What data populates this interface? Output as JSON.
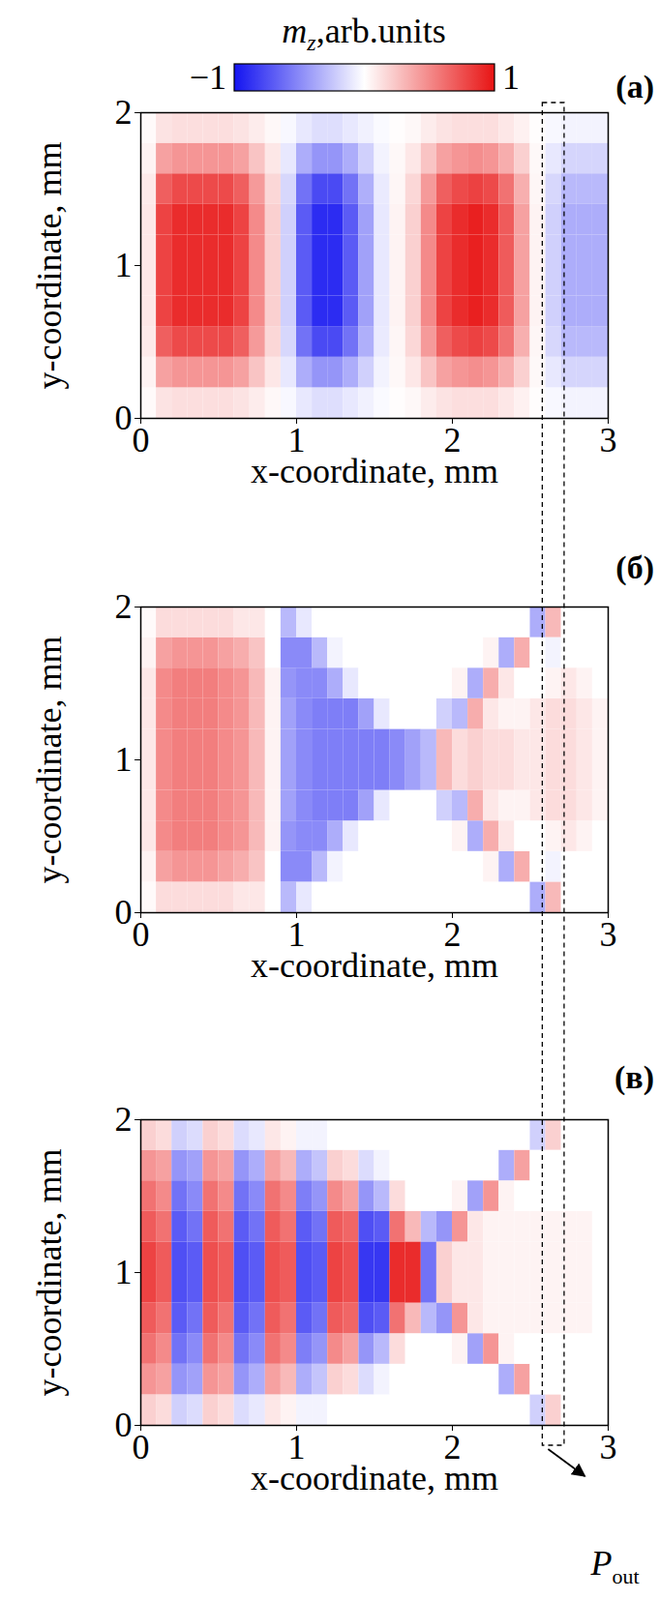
{
  "chart_data": [
    {
      "type": "heatmap",
      "title": "(а)",
      "x_label": "x-coordinate, mm",
      "y_label": "y-coordinate, mm",
      "xlim": [
        0,
        3
      ],
      "ylim": [
        0,
        2
      ],
      "xticks": [
        0,
        1,
        2,
        3
      ],
      "yticks": [
        0,
        1,
        2
      ],
      "x": [
        0.05,
        0.15,
        0.25,
        0.35,
        0.45,
        0.55,
        0.65,
        0.75,
        0.85,
        0.95,
        1.05,
        1.15,
        1.25,
        1.35,
        1.45,
        1.55,
        1.65,
        1.75,
        1.85,
        1.95,
        2.05,
        2.15,
        2.25,
        2.35,
        2.45,
        2.55,
        2.65,
        2.75,
        2.85,
        2.95
      ],
      "y": [
        0.1,
        0.3,
        0.5,
        0.7,
        0.9,
        1.1,
        1.3,
        1.5,
        1.7,
        1.9
      ],
      "z": [
        [
          0.02,
          0.12,
          0.14,
          0.14,
          0.14,
          0.14,
          0.12,
          0.08,
          0.03,
          -0.03,
          -0.1,
          -0.14,
          -0.14,
          -0.1,
          -0.06,
          -0.02,
          0.01,
          0.03,
          0.08,
          0.12,
          0.14,
          0.14,
          0.14,
          0.1,
          0.06,
          0.01,
          -0.03,
          -0.05,
          -0.05,
          -0.05
        ],
        [
          0.05,
          0.4,
          0.45,
          0.45,
          0.45,
          0.45,
          0.4,
          0.25,
          0.1,
          -0.1,
          -0.35,
          -0.45,
          -0.45,
          -0.35,
          -0.2,
          -0.05,
          0.03,
          0.1,
          0.25,
          0.4,
          0.45,
          0.48,
          0.45,
          0.35,
          0.2,
          0.03,
          -0.1,
          -0.18,
          -0.18,
          -0.18
        ],
        [
          0.09,
          0.68,
          0.77,
          0.77,
          0.77,
          0.77,
          0.68,
          0.43,
          0.17,
          -0.17,
          -0.6,
          -0.77,
          -0.77,
          -0.6,
          -0.34,
          -0.09,
          0.04,
          0.17,
          0.43,
          0.68,
          0.77,
          0.81,
          0.77,
          0.6,
          0.34,
          0.04,
          -0.17,
          -0.3,
          -0.3,
          -0.3
        ],
        [
          0.1,
          0.8,
          0.9,
          0.9,
          0.9,
          0.9,
          0.8,
          0.5,
          0.2,
          -0.2,
          -0.7,
          -0.9,
          -0.9,
          -0.7,
          -0.4,
          -0.1,
          0.05,
          0.2,
          0.5,
          0.8,
          0.9,
          0.95,
          0.9,
          0.7,
          0.4,
          0.05,
          -0.2,
          -0.35,
          -0.35,
          -0.35
        ],
        [
          0.1,
          0.8,
          0.9,
          0.9,
          0.9,
          0.9,
          0.8,
          0.5,
          0.2,
          -0.2,
          -0.7,
          -0.9,
          -0.9,
          -0.7,
          -0.4,
          -0.1,
          0.05,
          0.2,
          0.5,
          0.8,
          0.9,
          0.95,
          0.9,
          0.7,
          0.4,
          0.05,
          -0.2,
          -0.35,
          -0.35,
          -0.35
        ],
        [
          0.1,
          0.8,
          0.9,
          0.9,
          0.9,
          0.9,
          0.8,
          0.5,
          0.2,
          -0.2,
          -0.7,
          -0.9,
          -0.9,
          -0.7,
          -0.4,
          -0.1,
          0.05,
          0.2,
          0.5,
          0.8,
          0.9,
          0.95,
          0.9,
          0.7,
          0.4,
          0.05,
          -0.2,
          -0.35,
          -0.35,
          -0.35
        ],
        [
          0.1,
          0.8,
          0.9,
          0.9,
          0.9,
          0.9,
          0.8,
          0.5,
          0.2,
          -0.2,
          -0.7,
          -0.9,
          -0.9,
          -0.7,
          -0.4,
          -0.1,
          0.05,
          0.2,
          0.5,
          0.8,
          0.9,
          0.95,
          0.9,
          0.7,
          0.4,
          0.05,
          -0.2,
          -0.35,
          -0.35,
          -0.35
        ],
        [
          0.09,
          0.68,
          0.77,
          0.77,
          0.77,
          0.77,
          0.68,
          0.43,
          0.17,
          -0.17,
          -0.6,
          -0.77,
          -0.77,
          -0.6,
          -0.34,
          -0.09,
          0.04,
          0.17,
          0.43,
          0.68,
          0.77,
          0.81,
          0.77,
          0.6,
          0.34,
          0.04,
          -0.17,
          -0.3,
          -0.3,
          -0.3
        ],
        [
          0.05,
          0.4,
          0.45,
          0.45,
          0.45,
          0.45,
          0.4,
          0.25,
          0.1,
          -0.1,
          -0.35,
          -0.45,
          -0.45,
          -0.35,
          -0.2,
          -0.05,
          0.03,
          0.1,
          0.25,
          0.4,
          0.45,
          0.48,
          0.45,
          0.35,
          0.2,
          0.03,
          -0.1,
          -0.18,
          -0.18,
          -0.18
        ],
        [
          0.02,
          0.12,
          0.14,
          0.14,
          0.14,
          0.14,
          0.12,
          0.08,
          0.03,
          -0.03,
          -0.1,
          -0.14,
          -0.14,
          -0.1,
          -0.06,
          -0.02,
          0.01,
          0.03,
          0.08,
          0.12,
          0.14,
          0.14,
          0.14,
          0.1,
          0.06,
          0.01,
          -0.03,
          -0.05,
          -0.05,
          -0.05
        ]
      ]
    },
    {
      "type": "heatmap",
      "title": "(б)",
      "x_label": "x-coordinate, mm",
      "y_label": "y-coordinate, mm",
      "xlim": [
        0,
        3
      ],
      "ylim": [
        0,
        2
      ],
      "xticks": [
        0,
        1,
        2,
        3
      ],
      "yticks": [
        0,
        1,
        2
      ],
      "x": [
        0.05,
        0.15,
        0.25,
        0.35,
        0.45,
        0.55,
        0.65,
        0.75,
        0.85,
        0.95,
        1.05,
        1.15,
        1.25,
        1.35,
        1.45,
        1.55,
        1.65,
        1.75,
        1.85,
        1.95,
        2.05,
        2.15,
        2.25,
        2.35,
        2.45,
        2.55,
        2.65,
        2.75,
        2.85,
        2.95
      ],
      "y": [
        0.1,
        0.3,
        0.5,
        0.7,
        0.9,
        1.1,
        1.3,
        1.5,
        1.7,
        1.9
      ],
      "z": [
        [
          0.02,
          0.15,
          0.15,
          0.15,
          0.15,
          0.15,
          0.1,
          0.1,
          0,
          -0.3,
          -0.1,
          0,
          0,
          0,
          0,
          0,
          0,
          0,
          0,
          0,
          0,
          0,
          0,
          0,
          0,
          -0.35,
          0.3,
          0,
          0,
          0
        ],
        [
          0.05,
          0.4,
          0.45,
          0.45,
          0.45,
          0.4,
          0.35,
          0.25,
          0,
          -0.5,
          -0.5,
          -0.3,
          -0.05,
          0,
          0,
          0,
          0,
          0,
          0,
          0,
          0,
          0,
          0.05,
          -0.35,
          0.35,
          0,
          -0.05,
          0,
          0,
          0
        ],
        [
          0.1,
          0.5,
          0.55,
          0.55,
          0.55,
          0.5,
          0.45,
          0.3,
          0.05,
          -0.45,
          -0.5,
          -0.5,
          -0.35,
          -0.1,
          0,
          0,
          0,
          0,
          0,
          0,
          0.05,
          -0.35,
          0.35,
          0.1,
          0,
          0,
          0.05,
          0.1,
          0.05,
          0
        ],
        [
          0.1,
          0.5,
          0.55,
          0.55,
          0.55,
          0.5,
          0.45,
          0.3,
          0.05,
          -0.4,
          -0.5,
          -0.55,
          -0.55,
          -0.55,
          -0.4,
          -0.1,
          0,
          0,
          0,
          -0.2,
          -0.3,
          0.35,
          0.1,
          0.05,
          0.05,
          0.1,
          0.15,
          0.15,
          0.1,
          0.05
        ],
        [
          0.1,
          0.5,
          0.55,
          0.55,
          0.55,
          0.5,
          0.45,
          0.3,
          0.05,
          -0.4,
          -0.5,
          -0.55,
          -0.55,
          -0.55,
          -0.55,
          -0.55,
          -0.5,
          -0.4,
          -0.3,
          0.3,
          0.15,
          0.2,
          0.15,
          0.15,
          0.1,
          0.1,
          0.15,
          0.15,
          0.1,
          0.05
        ],
        [
          0.1,
          0.5,
          0.55,
          0.55,
          0.55,
          0.5,
          0.45,
          0.3,
          0.05,
          -0.4,
          -0.5,
          -0.55,
          -0.55,
          -0.55,
          -0.55,
          -0.55,
          -0.5,
          -0.4,
          -0.3,
          0.3,
          0.15,
          0.2,
          0.15,
          0.15,
          0.1,
          0.1,
          0.15,
          0.15,
          0.1,
          0.05
        ],
        [
          0.1,
          0.5,
          0.55,
          0.55,
          0.55,
          0.5,
          0.45,
          0.3,
          0.05,
          -0.4,
          -0.5,
          -0.55,
          -0.55,
          -0.55,
          -0.4,
          -0.1,
          0,
          0,
          0,
          -0.2,
          -0.3,
          0.35,
          0.1,
          0.05,
          0.05,
          0.1,
          0.15,
          0.15,
          0.1,
          0.05
        ],
        [
          0.1,
          0.5,
          0.55,
          0.55,
          0.55,
          0.5,
          0.45,
          0.3,
          0.05,
          -0.45,
          -0.5,
          -0.5,
          -0.35,
          -0.1,
          0,
          0,
          0,
          0,
          0,
          0,
          0.05,
          -0.35,
          0.35,
          0.1,
          0,
          0,
          0.05,
          0.1,
          0.05,
          0
        ],
        [
          0.05,
          0.4,
          0.45,
          0.45,
          0.45,
          0.4,
          0.35,
          0.25,
          0,
          -0.5,
          -0.5,
          -0.3,
          -0.05,
          0,
          0,
          0,
          0,
          0,
          0,
          0,
          0,
          0,
          0.05,
          -0.35,
          0.35,
          0,
          -0.05,
          0,
          0,
          0
        ],
        [
          0.02,
          0.15,
          0.15,
          0.15,
          0.15,
          0.15,
          0.1,
          0.1,
          0,
          -0.3,
          -0.1,
          0,
          0,
          0,
          0,
          0,
          0,
          0,
          0,
          0,
          0,
          0,
          0,
          0,
          0,
          -0.35,
          0.3,
          0,
          0,
          0
        ]
      ]
    },
    {
      "type": "heatmap",
      "title": "(в)",
      "x_label": "x-coordinate, mm",
      "y_label": "y-coordinate, mm",
      "xlim": [
        0,
        3
      ],
      "ylim": [
        0,
        2
      ],
      "xticks": [
        0,
        1,
        2,
        3
      ],
      "yticks": [
        0,
        1,
        2
      ],
      "x": [
        0.05,
        0.15,
        0.25,
        0.35,
        0.45,
        0.55,
        0.65,
        0.75,
        0.85,
        0.95,
        1.05,
        1.15,
        1.25,
        1.35,
        1.45,
        1.55,
        1.65,
        1.75,
        1.85,
        1.95,
        2.05,
        2.15,
        2.25,
        2.35,
        2.45,
        2.55,
        2.65,
        2.75,
        2.85,
        2.95
      ],
      "y": [
        0.1,
        0.3,
        0.5,
        0.7,
        0.9,
        1.1,
        1.3,
        1.5,
        1.7,
        1.9
      ],
      "z": [
        [
          0.2,
          0.15,
          -0.2,
          -0.15,
          0.2,
          0.15,
          -0.15,
          -0.1,
          0.1,
          0.05,
          -0.05,
          -0.05,
          0,
          0,
          0,
          0,
          0,
          0,
          0,
          0,
          0,
          0,
          0,
          0,
          0,
          -0.2,
          0.2,
          0,
          0,
          0
        ],
        [
          0.45,
          0.4,
          -0.45,
          -0.4,
          0.45,
          0.4,
          -0.45,
          -0.35,
          0.4,
          0.3,
          -0.35,
          -0.25,
          0.2,
          0.15,
          -0.15,
          -0.05,
          0,
          0,
          0,
          0,
          0,
          0,
          0,
          -0.35,
          0.4,
          0,
          0,
          0,
          0,
          0
        ],
        [
          0.6,
          0.5,
          -0.6,
          -0.5,
          0.6,
          0.5,
          -0.6,
          -0.5,
          0.6,
          0.5,
          -0.55,
          -0.45,
          0.5,
          0.4,
          -0.45,
          -0.3,
          0.15,
          0,
          0,
          0,
          0.05,
          -0.4,
          0.45,
          0.05,
          0,
          0,
          0,
          0,
          0,
          0
        ],
        [
          0.7,
          0.6,
          -0.7,
          -0.6,
          0.7,
          0.6,
          -0.7,
          -0.6,
          0.7,
          0.6,
          -0.7,
          -0.6,
          0.7,
          0.65,
          -0.75,
          -0.7,
          0.6,
          0.3,
          -0.3,
          -0.45,
          0.45,
          0.1,
          0.05,
          0.05,
          0.05,
          0.05,
          0.05,
          0.05,
          0.05,
          0
        ],
        [
          0.8,
          0.7,
          -0.75,
          -0.7,
          0.75,
          0.7,
          -0.75,
          -0.7,
          0.75,
          0.7,
          -0.75,
          -0.7,
          0.8,
          0.75,
          -0.85,
          -0.85,
          0.9,
          0.9,
          -0.6,
          0.2,
          0.1,
          0.1,
          0.05,
          0.05,
          0.05,
          0.05,
          0.05,
          0.05,
          0.05,
          0
        ],
        [
          0.8,
          0.7,
          -0.75,
          -0.7,
          0.75,
          0.7,
          -0.75,
          -0.7,
          0.75,
          0.7,
          -0.75,
          -0.7,
          0.8,
          0.75,
          -0.85,
          -0.85,
          0.9,
          0.9,
          -0.6,
          0.2,
          0.1,
          0.1,
          0.05,
          0.05,
          0.05,
          0.05,
          0.05,
          0.05,
          0.05,
          0
        ],
        [
          0.7,
          0.6,
          -0.7,
          -0.6,
          0.7,
          0.6,
          -0.7,
          -0.6,
          0.7,
          0.6,
          -0.7,
          -0.6,
          0.7,
          0.65,
          -0.75,
          -0.7,
          0.6,
          0.3,
          -0.3,
          -0.45,
          0.45,
          0.1,
          0.05,
          0.05,
          0.05,
          0.05,
          0.05,
          0.05,
          0.05,
          0
        ],
        [
          0.6,
          0.5,
          -0.6,
          -0.5,
          0.6,
          0.5,
          -0.6,
          -0.5,
          0.6,
          0.5,
          -0.55,
          -0.45,
          0.5,
          0.4,
          -0.45,
          -0.3,
          0.15,
          0,
          0,
          0,
          0.05,
          -0.4,
          0.45,
          0.05,
          0,
          0,
          0,
          0,
          0,
          0
        ],
        [
          0.45,
          0.4,
          -0.45,
          -0.4,
          0.45,
          0.4,
          -0.45,
          -0.35,
          0.4,
          0.3,
          -0.35,
          -0.25,
          0.2,
          0.15,
          -0.15,
          -0.05,
          0,
          0,
          0,
          0,
          0,
          0,
          0,
          -0.35,
          0.4,
          0,
          0,
          0,
          0,
          0
        ],
        [
          0.2,
          0.15,
          -0.2,
          -0.15,
          0.2,
          0.15,
          -0.15,
          -0.1,
          0.1,
          0.05,
          -0.05,
          -0.05,
          0,
          0,
          0,
          0,
          0,
          0,
          0,
          0,
          0,
          0,
          0,
          0,
          0,
          -0.2,
          0.2,
          0,
          0,
          0
        ]
      ]
    }
  ],
  "colorbar": {
    "label_main": "m",
    "label_sub": "z",
    "label_rest": ",arb.units",
    "range": [
      -1,
      1
    ],
    "ticks": [
      -1,
      1
    ],
    "colors": [
      "#1414f0",
      "#ffffff",
      "#e81414"
    ]
  },
  "annotation": {
    "x_range": [
      2.58,
      2.72
    ],
    "label_main": "P",
    "label_sub": "out"
  }
}
